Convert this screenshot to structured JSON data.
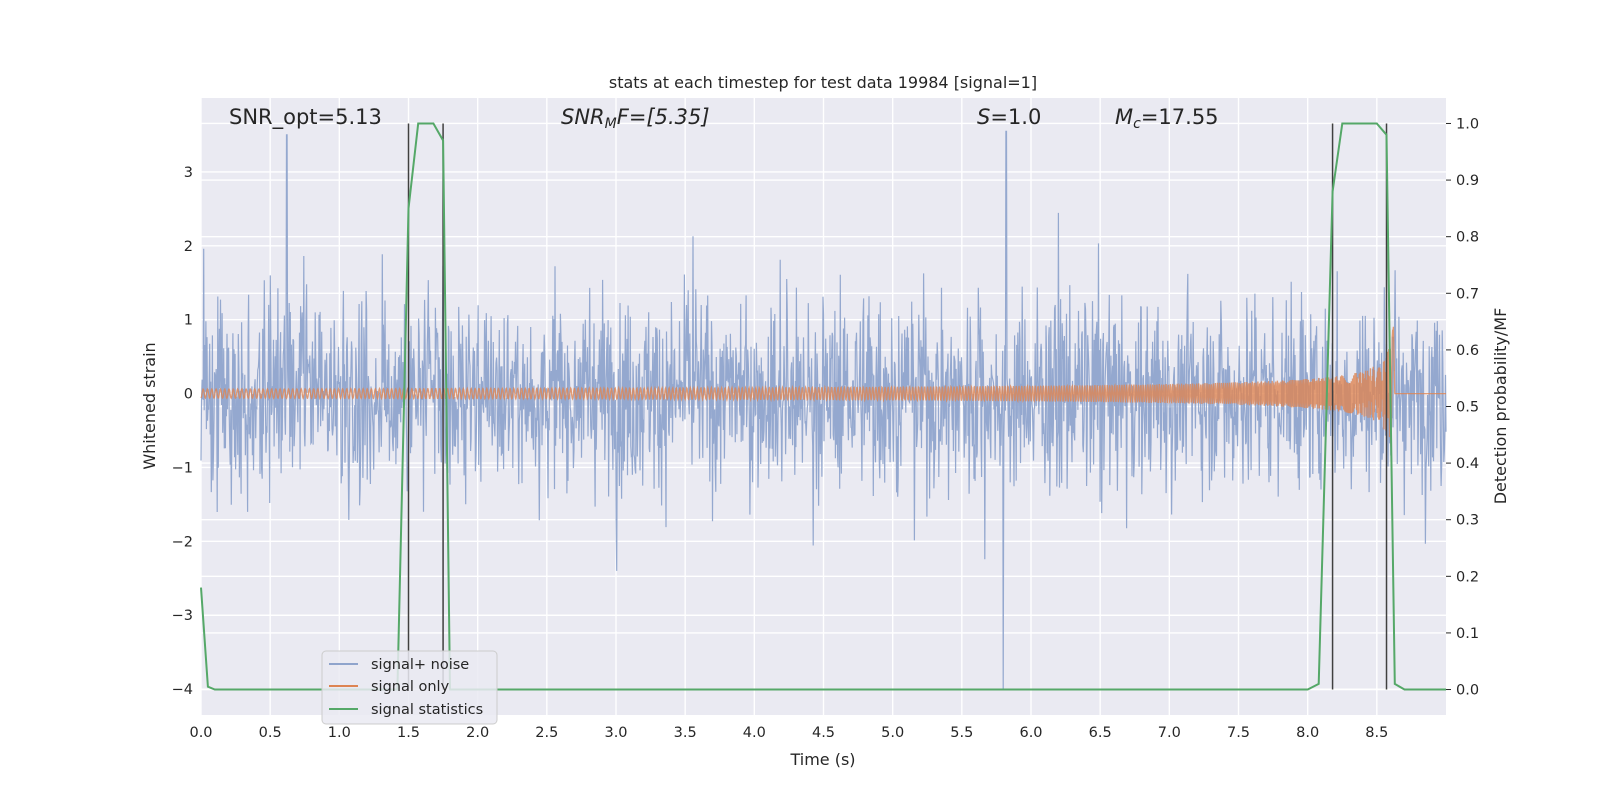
{
  "chart_data": {
    "type": "line",
    "title": "stats at each timestep for test data 19984 [signal=1]",
    "xlabel": "Time (s)",
    "ylabel": "Whitened strain",
    "ylabel_right": "Detection probability/MF",
    "xlim": [
      0,
      9
    ],
    "ylim": [
      -4.35,
      4.0
    ],
    "ylim_right": [
      -0.045,
      1.045
    ],
    "x_ticks": [
      "0.0",
      "0.5",
      "1.0",
      "1.5",
      "2.0",
      "2.5",
      "3.0",
      "3.5",
      "4.0",
      "4.5",
      "5.0",
      "5.5",
      "6.0",
      "6.5",
      "7.0",
      "7.5",
      "8.0",
      "8.5"
    ],
    "y_ticks": [
      "-4",
      "-3",
      "-2",
      "-1",
      "0",
      "1",
      "2",
      "3"
    ],
    "y_ticks_right": [
      "0.0",
      "0.1",
      "0.2",
      "0.3",
      "0.4",
      "0.5",
      "0.6",
      "0.7",
      "0.8",
      "0.9",
      "1.0"
    ],
    "grid": true,
    "annotations": {
      "snr_opt": "SNR_opt=5.13",
      "snr_mf_base": "SNR",
      "snr_mf_sub": "M",
      "snr_mf_rest": "F=[5.35]",
      "s_italic": "S",
      "s_rest": "=1.0",
      "mc_base": "M",
      "mc_sub": "c",
      "mc_rest": "=17.55"
    },
    "legend": {
      "position": "lower left",
      "entries": [
        "signal+ noise",
        "signal only",
        "signal statistics"
      ]
    },
    "colors": {
      "noise": "#8fa4cc",
      "signal": "#dd8452",
      "stats": "#55a868",
      "markers": "#404040",
      "background": "#eaeaf2"
    },
    "series": [
      {
        "name": "signal+ noise",
        "axis": "left",
        "description_values": "noisy whitened strain, mostly within [-2.2, 2.2], peaks ~3.5 at t=0.62 and t=5.82, dip to -4 at t=5.8",
        "noise_band": [
          -2.2,
          2.2
        ]
      },
      {
        "name": "signal only",
        "axis": "left",
        "chirp": {
          "t_start": 0.0,
          "t_merger": 8.62,
          "peak_amplitude": 0.95
        }
      },
      {
        "name": "signal statistics",
        "axis": "right",
        "x": [
          0.0,
          0.05,
          0.1,
          1.42,
          1.5,
          1.57,
          1.68,
          1.75,
          1.8,
          1.85,
          8.0,
          8.08,
          8.18,
          8.25,
          8.5,
          8.57,
          8.63,
          8.7,
          9.0
        ],
        "y": [
          0.18,
          0.005,
          0.0,
          0.0,
          0.85,
          1.0,
          1.0,
          0.97,
          0.0,
          0.0,
          0.0,
          0.01,
          0.88,
          1.0,
          1.0,
          0.98,
          0.01,
          0.0,
          0.0
        ]
      }
    ],
    "vertical_markers": [
      1.5,
      1.75,
      8.18,
      8.57
    ]
  }
}
